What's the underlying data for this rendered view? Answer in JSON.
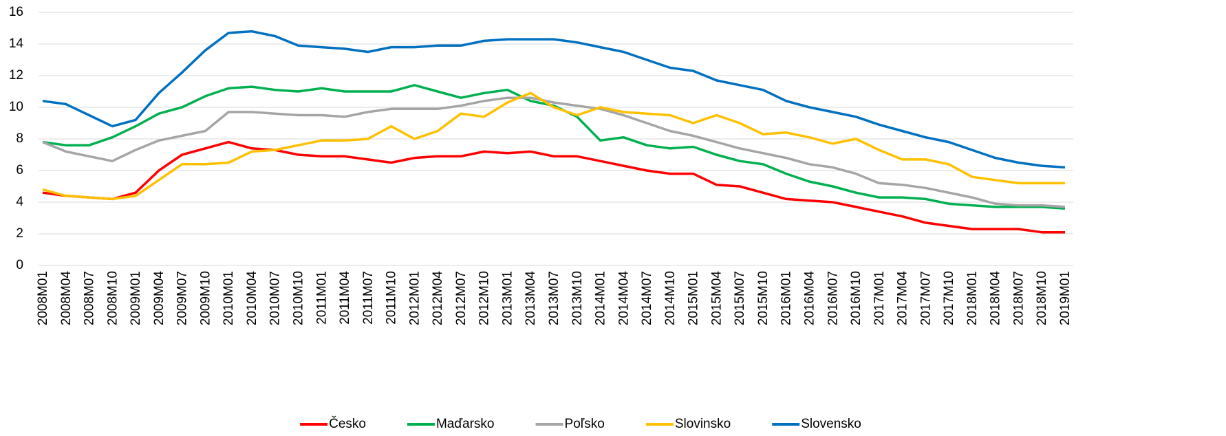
{
  "chart_data": {
    "type": "line",
    "categories": [
      "2008M01",
      "2008M04",
      "2008M07",
      "2008M10",
      "2009M01",
      "2009M04",
      "2009M07",
      "2009M10",
      "2010M01",
      "2010M04",
      "2010M07",
      "2010M10",
      "2011M01",
      "2011M04",
      "2011M07",
      "2011M10",
      "2012M01",
      "2012M04",
      "2012M07",
      "2012M10",
      "2013M01",
      "2013M04",
      "2013M07",
      "2013M10",
      "2014M01",
      "2014M04",
      "2014M07",
      "2014M10",
      "2015M01",
      "2015M04",
      "2015M07",
      "2015M10",
      "2016M01",
      "2016M04",
      "2016M07",
      "2016M10",
      "2017M01",
      "2017M04",
      "2017M07",
      "2017M10",
      "2018M01",
      "2018M04",
      "2018M07",
      "2018M10",
      "2019M01"
    ],
    "series": [
      {
        "name": "Česko",
        "color": "#ff0000",
        "values": [
          4.6,
          4.4,
          4.3,
          4.2,
          4.6,
          6.0,
          7.0,
          7.4,
          7.8,
          7.4,
          7.3,
          7.0,
          6.9,
          6.9,
          6.7,
          6.5,
          6.8,
          6.9,
          6.9,
          7.2,
          7.1,
          7.2,
          6.9,
          6.9,
          6.6,
          6.3,
          6.0,
          5.8,
          5.8,
          5.1,
          5.0,
          4.6,
          4.2,
          4.1,
          4.0,
          3.7,
          3.4,
          3.1,
          2.7,
          2.5,
          2.3,
          2.3,
          2.3,
          2.1,
          2.1
        ]
      },
      {
        "name": "Maďarsko",
        "color": "#00b050",
        "values": [
          7.8,
          7.6,
          7.6,
          8.1,
          8.8,
          9.6,
          10.0,
          10.7,
          11.2,
          11.3,
          11.1,
          11.0,
          11.2,
          11.0,
          11.0,
          11.0,
          11.4,
          11.0,
          10.6,
          10.9,
          11.1,
          10.4,
          10.1,
          9.4,
          7.9,
          8.1,
          7.6,
          7.4,
          7.5,
          7.0,
          6.6,
          6.4,
          5.8,
          5.3,
          5.0,
          4.6,
          4.3,
          4.3,
          4.2,
          3.9,
          3.8,
          3.7,
          3.7,
          3.7,
          3.6
        ]
      },
      {
        "name": "Poľsko",
        "color": "#a5a5a5",
        "values": [
          7.8,
          7.2,
          6.9,
          6.6,
          7.3,
          7.9,
          8.2,
          8.5,
          9.7,
          9.7,
          9.6,
          9.5,
          9.5,
          9.4,
          9.7,
          9.9,
          9.9,
          9.9,
          10.1,
          10.4,
          10.6,
          10.6,
          10.3,
          10.1,
          9.9,
          9.5,
          9.0,
          8.5,
          8.2,
          7.8,
          7.4,
          7.1,
          6.8,
          6.4,
          6.2,
          5.8,
          5.2,
          5.1,
          4.9,
          4.6,
          4.3,
          3.9,
          3.8,
          3.8,
          3.7
        ]
      },
      {
        "name": "Slovinsko",
        "color": "#ffc000",
        "values": [
          4.8,
          4.4,
          4.3,
          4.2,
          4.4,
          5.4,
          6.4,
          6.4,
          6.5,
          7.2,
          7.3,
          7.6,
          7.9,
          7.9,
          8.0,
          8.8,
          8.0,
          8.5,
          9.6,
          9.4,
          10.3,
          10.9,
          10.0,
          9.5,
          10.0,
          9.7,
          9.6,
          9.5,
          9.0,
          9.5,
          9.0,
          8.3,
          8.4,
          8.1,
          7.7,
          8.0,
          7.3,
          6.7,
          6.7,
          6.4,
          5.6,
          5.4,
          5.2,
          5.2,
          5.2
        ]
      },
      {
        "name": "Slovensko",
        "color": "#0070c0",
        "values": [
          10.4,
          10.2,
          9.5,
          8.8,
          9.2,
          10.9,
          12.2,
          13.6,
          14.7,
          14.8,
          14.5,
          13.9,
          13.8,
          13.7,
          13.5,
          13.8,
          13.8,
          13.9,
          13.9,
          14.2,
          14.3,
          14.3,
          14.3,
          14.1,
          13.8,
          13.5,
          13.0,
          12.5,
          12.3,
          11.7,
          11.4,
          11.1,
          10.4,
          10.0,
          9.7,
          9.4,
          8.9,
          8.5,
          8.1,
          7.8,
          7.3,
          6.8,
          6.5,
          6.3,
          6.2
        ]
      }
    ],
    "ylim": [
      0,
      16
    ],
    "yticks": [
      0,
      2,
      4,
      6,
      8,
      10,
      12,
      14,
      16
    ],
    "grid": true,
    "legend": "bottom"
  }
}
